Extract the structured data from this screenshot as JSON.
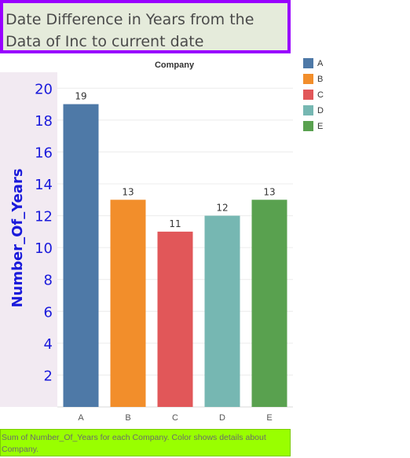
{
  "title": "Date Difference in Years from the Data of Inc to current date",
  "caption": "Sum of Number_Of_Years for each Company.  Color shows details about Company.",
  "chart_data": {
    "type": "bar",
    "header": "Company",
    "categories": [
      "A",
      "B",
      "C",
      "D",
      "E"
    ],
    "values": [
      19,
      13,
      11,
      12,
      13
    ],
    "colors": [
      "#4e79a7",
      "#f28e2b",
      "#e15759",
      "#76b7b2",
      "#59a14f"
    ],
    "ylabel": "Number_Of_Years",
    "ylim": [
      0,
      21
    ],
    "yticks": [
      2,
      4,
      6,
      8,
      10,
      12,
      14,
      16,
      18,
      20
    ],
    "grid": true,
    "legend_position": "right",
    "legend": [
      "A",
      "B",
      "C",
      "D",
      "E"
    ]
  }
}
